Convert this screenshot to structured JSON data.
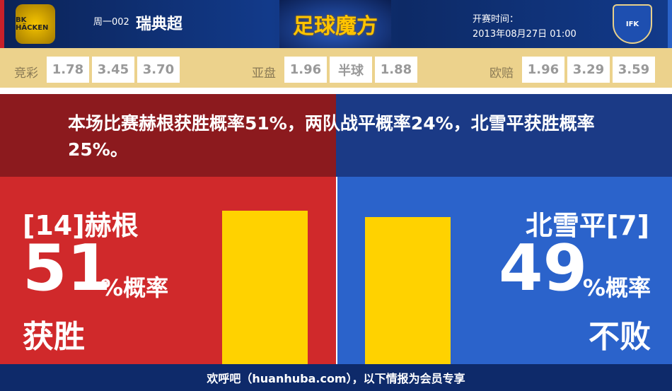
{
  "header": {
    "home_logo_text": "BK HÄCKEN",
    "away_logo_text": "IFK",
    "match_no": "周一002",
    "league": "瑞典超",
    "brand": "足球魔方",
    "kickoff_label": "开赛时间：",
    "kickoff_time": "2013年08月27日 01:00"
  },
  "odds": {
    "jingcai": {
      "label": "竞彩",
      "values": [
        "1.78",
        "3.45",
        "3.70"
      ]
    },
    "yapan": {
      "label": "亚盘",
      "values": [
        "1.96",
        "半球",
        "1.88"
      ]
    },
    "oupei": {
      "label": "欧赔",
      "values": [
        "1.96",
        "3.29",
        "3.59"
      ]
    }
  },
  "summary": "本场比赛赫根获胜概率51%，两队战平概率24%，北雪平获胜概率25%。",
  "home": {
    "team": "[14]赫根",
    "percent": "51",
    "unit": "%概率",
    "outcome": "获胜",
    "probability": 51
  },
  "away": {
    "team": "北雪平[7]",
    "percent": "49",
    "unit": "%概率",
    "outcome": "不败",
    "probability": 49
  },
  "colors": {
    "home": "#d0292b",
    "away": "#2b63cb",
    "bar": "#ffd200"
  },
  "footer": "欢呼吧（huanhuba.com），以下情报为会员专享"
}
